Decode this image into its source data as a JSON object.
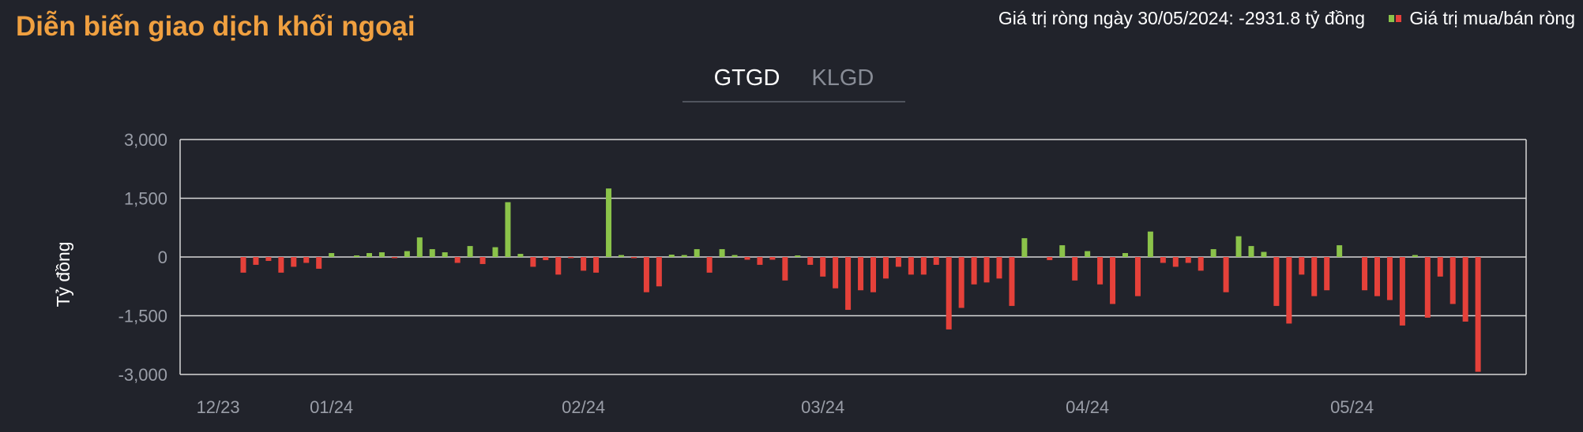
{
  "header": {
    "title": "Diễn biến giao dịch khối ngoại",
    "summary": "Giá trị ròng ngày 30/05/2024: -2931.8 tỷ đồng",
    "legend_label": "Giá trị mua/bán ròng"
  },
  "tabs": [
    {
      "label": "GTGD",
      "active": true
    },
    {
      "label": "KLGD",
      "active": false
    }
  ],
  "colors": {
    "positive": "#8bc34a",
    "negative": "#e5413a",
    "title": "#f0a040",
    "background": "#21232b"
  },
  "chart_data": {
    "type": "bar",
    "ylabel": "Tỷ đồng",
    "ylim": [
      -3000,
      3000
    ],
    "yticks": [
      "3,000",
      "1,500",
      "0",
      "-1,500",
      "-3,000"
    ],
    "ytick_values": [
      3000,
      1500,
      0,
      -1500,
      -3000
    ],
    "x_ticks": [
      {
        "label": "12/23",
        "index": -2
      },
      {
        "label": "01/24",
        "index": 7
      },
      {
        "label": "02/24",
        "index": 27
      },
      {
        "label": "03/24",
        "index": 46
      },
      {
        "label": "04/24",
        "index": 67
      },
      {
        "label": "05/24",
        "index": 88
      }
    ],
    "grid": true,
    "legend": "top-right",
    "values": [
      -400,
      -200,
      -100,
      -400,
      -250,
      -150,
      -300,
      100,
      0,
      40,
      100,
      120,
      -30,
      150,
      500,
      200,
      120,
      -150,
      280,
      -180,
      250,
      1400,
      80,
      -250,
      -80,
      -450,
      -30,
      -350,
      -400,
      1750,
      50,
      -30,
      -900,
      -750,
      60,
      50,
      200,
      -400,
      200,
      50,
      -70,
      -200,
      -70,
      -600,
      40,
      -200,
      -500,
      -800,
      -1350,
      -850,
      -900,
      -550,
      -250,
      -450,
      -450,
      -200,
      -1850,
      -1300,
      -700,
      -650,
      -550,
      -1250,
      480,
      0,
      -80,
      300,
      -600,
      150,
      -700,
      -1200,
      100,
      -1000,
      650,
      -150,
      -250,
      -150,
      -350,
      200,
      -900,
      530,
      280,
      130,
      -1250,
      -1700,
      -450,
      -1000,
      -850,
      300,
      0,
      -850,
      -1000,
      -1100,
      -1750,
      50,
      -1550,
      -500,
      -1200,
      -1650,
      -2931.8
    ]
  }
}
